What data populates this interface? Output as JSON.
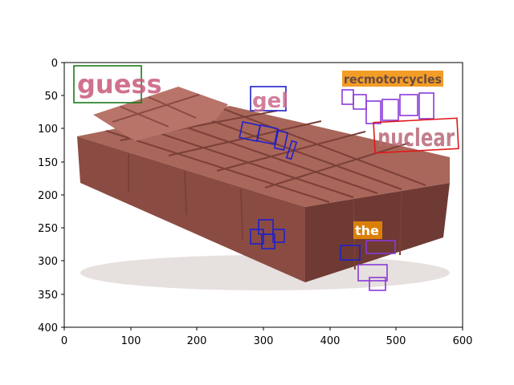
{
  "figure": {
    "xlim": [
      0,
      600
    ],
    "ylim": [
      400,
      0
    ],
    "x_ticks": [
      "0",
      "100",
      "200",
      "300",
      "400",
      "500",
      "600"
    ],
    "y_ticks": [
      "0",
      "50",
      "100",
      "150",
      "200",
      "250",
      "300",
      "350",
      "400"
    ]
  },
  "image": {
    "subject": "chocolate-bar-sofa-bed",
    "colors": {
      "bed_top": "#a9665a",
      "bed_side": "#8a4c42",
      "bed_dark": "#6e3a33",
      "pillow": "#b9746a",
      "groove": "#7a4038"
    }
  },
  "annotations": [
    {
      "text": "guess",
      "box_color": "#1a7a1a"
    },
    {
      "text": "gel",
      "box_color": "#2020cc"
    },
    {
      "text": "recmotorcycles",
      "box_color": "#f08c00"
    },
    {
      "text": "nuclear",
      "box_color": "#e01818"
    },
    {
      "text": "the",
      "box_color": "#f08c00"
    }
  ]
}
